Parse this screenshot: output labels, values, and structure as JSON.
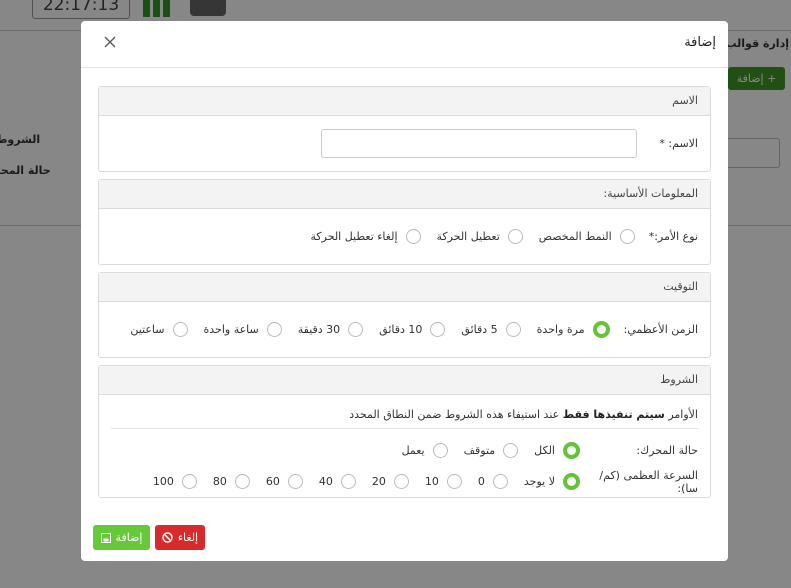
{
  "background": {
    "clock": "22:17:13",
    "menu_title": "إدارة قوالب",
    "add_button": "إضافة +",
    "conditions_label": "الشروط",
    "engine_label": "حالة المحر"
  },
  "modal": {
    "title": "إضافة",
    "sections": [
      {
        "title": "الاسم",
        "input_label": "الاسم: *"
      },
      {
        "title": "المعلومات الأساسية:",
        "groups": [
          {
            "label": "نوع الأمر:*",
            "options": [
              "النمط المخصص",
              "تعطيل الحركة",
              "إلغاء تعطيل الحركة"
            ]
          }
        ]
      },
      {
        "title": "التوقيت",
        "groups": [
          {
            "label": "الزمن الأعظمي:",
            "options": [
              "مرة واحدة",
              "5 دقائق",
              "10 دقائق",
              "30 دقيقة",
              "ساعة واحدة",
              "ساعتين"
            ],
            "selected": 0
          }
        ]
      },
      {
        "title": "الشروط",
        "note": {
          "before": "الأوامر",
          "bold": "سيتم تنفيذها فقط",
          "after": "عند استيفاء هذه الشروط ضمن النطاق المحدد"
        },
        "groups": [
          {
            "label": "حالة المحرك:",
            "options": [
              "الكل",
              "متوقف",
              "يعمل"
            ],
            "selected": 0
          },
          {
            "label": "السرعة العظمى (كم/سا):",
            "options": [
              "لا يوجد",
              "0",
              "10",
              "20",
              "40",
              "60",
              "80",
              "100"
            ],
            "selected": 0
          }
        ]
      }
    ],
    "buttons": {
      "save": "إضافة",
      "cancel": "إلغاء"
    }
  }
}
